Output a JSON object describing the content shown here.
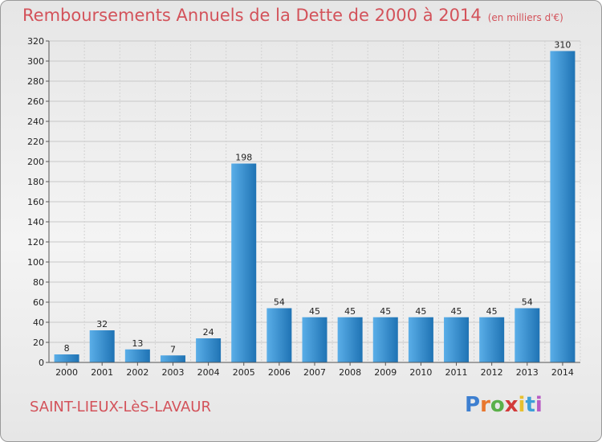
{
  "title": "Remboursements Annuels de la Dette de 2000 à 2014",
  "unit": "(en milliers d'€)",
  "commune": "SAINT-LIEUX-LèS-LAVAUR",
  "logo": "Proxiti",
  "colors": {
    "title": "#d3525a",
    "bar_light": "#5aaee8",
    "bar_dark": "#1f73b4"
  },
  "chart_data": {
    "type": "bar",
    "categories": [
      "2000",
      "2001",
      "2002",
      "2003",
      "2004",
      "2005",
      "2006",
      "2007",
      "2008",
      "2009",
      "2010",
      "2011",
      "2012",
      "2013",
      "2014"
    ],
    "values": [
      8,
      32,
      13,
      7,
      24,
      198,
      54,
      45,
      45,
      45,
      45,
      45,
      45,
      54,
      310
    ],
    "ylim": [
      0,
      320
    ],
    "yticks": [
      0,
      20,
      40,
      60,
      80,
      100,
      120,
      140,
      160,
      180,
      200,
      220,
      240,
      260,
      280,
      300,
      320
    ],
    "grid": true
  }
}
